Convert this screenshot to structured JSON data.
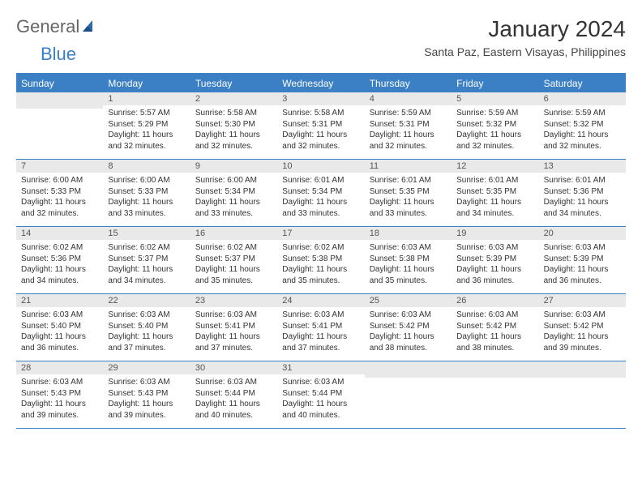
{
  "logo": {
    "text1": "General",
    "text2": "Blue"
  },
  "title": "January 2024",
  "subtitle": "Santa Paz, Eastern Visayas, Philippines",
  "colors": {
    "accent": "#3b7fc4",
    "header_bg": "#3b7fc4",
    "header_text": "#ffffff",
    "daynum_bg": "#e9e9e9",
    "text": "#333333"
  },
  "day_names": [
    "Sunday",
    "Monday",
    "Tuesday",
    "Wednesday",
    "Thursday",
    "Friday",
    "Saturday"
  ],
  "weeks": [
    [
      {
        "n": "",
        "lines": []
      },
      {
        "n": "1",
        "lines": [
          "Sunrise: 5:57 AM",
          "Sunset: 5:29 PM",
          "Daylight: 11 hours and 32 minutes."
        ]
      },
      {
        "n": "2",
        "lines": [
          "Sunrise: 5:58 AM",
          "Sunset: 5:30 PM",
          "Daylight: 11 hours and 32 minutes."
        ]
      },
      {
        "n": "3",
        "lines": [
          "Sunrise: 5:58 AM",
          "Sunset: 5:31 PM",
          "Daylight: 11 hours and 32 minutes."
        ]
      },
      {
        "n": "4",
        "lines": [
          "Sunrise: 5:59 AM",
          "Sunset: 5:31 PM",
          "Daylight: 11 hours and 32 minutes."
        ]
      },
      {
        "n": "5",
        "lines": [
          "Sunrise: 5:59 AM",
          "Sunset: 5:32 PM",
          "Daylight: 11 hours and 32 minutes."
        ]
      },
      {
        "n": "6",
        "lines": [
          "Sunrise: 5:59 AM",
          "Sunset: 5:32 PM",
          "Daylight: 11 hours and 32 minutes."
        ]
      }
    ],
    [
      {
        "n": "7",
        "lines": [
          "Sunrise: 6:00 AM",
          "Sunset: 5:33 PM",
          "Daylight: 11 hours and 32 minutes."
        ]
      },
      {
        "n": "8",
        "lines": [
          "Sunrise: 6:00 AM",
          "Sunset: 5:33 PM",
          "Daylight: 11 hours and 33 minutes."
        ]
      },
      {
        "n": "9",
        "lines": [
          "Sunrise: 6:00 AM",
          "Sunset: 5:34 PM",
          "Daylight: 11 hours and 33 minutes."
        ]
      },
      {
        "n": "10",
        "lines": [
          "Sunrise: 6:01 AM",
          "Sunset: 5:34 PM",
          "Daylight: 11 hours and 33 minutes."
        ]
      },
      {
        "n": "11",
        "lines": [
          "Sunrise: 6:01 AM",
          "Sunset: 5:35 PM",
          "Daylight: 11 hours and 33 minutes."
        ]
      },
      {
        "n": "12",
        "lines": [
          "Sunrise: 6:01 AM",
          "Sunset: 5:35 PM",
          "Daylight: 11 hours and 34 minutes."
        ]
      },
      {
        "n": "13",
        "lines": [
          "Sunrise: 6:01 AM",
          "Sunset: 5:36 PM",
          "Daylight: 11 hours and 34 minutes."
        ]
      }
    ],
    [
      {
        "n": "14",
        "lines": [
          "Sunrise: 6:02 AM",
          "Sunset: 5:36 PM",
          "Daylight: 11 hours and 34 minutes."
        ]
      },
      {
        "n": "15",
        "lines": [
          "Sunrise: 6:02 AM",
          "Sunset: 5:37 PM",
          "Daylight: 11 hours and 34 minutes."
        ]
      },
      {
        "n": "16",
        "lines": [
          "Sunrise: 6:02 AM",
          "Sunset: 5:37 PM",
          "Daylight: 11 hours and 35 minutes."
        ]
      },
      {
        "n": "17",
        "lines": [
          "Sunrise: 6:02 AM",
          "Sunset: 5:38 PM",
          "Daylight: 11 hours and 35 minutes."
        ]
      },
      {
        "n": "18",
        "lines": [
          "Sunrise: 6:03 AM",
          "Sunset: 5:38 PM",
          "Daylight: 11 hours and 35 minutes."
        ]
      },
      {
        "n": "19",
        "lines": [
          "Sunrise: 6:03 AM",
          "Sunset: 5:39 PM",
          "Daylight: 11 hours and 36 minutes."
        ]
      },
      {
        "n": "20",
        "lines": [
          "Sunrise: 6:03 AM",
          "Sunset: 5:39 PM",
          "Daylight: 11 hours and 36 minutes."
        ]
      }
    ],
    [
      {
        "n": "21",
        "lines": [
          "Sunrise: 6:03 AM",
          "Sunset: 5:40 PM",
          "Daylight: 11 hours and 36 minutes."
        ]
      },
      {
        "n": "22",
        "lines": [
          "Sunrise: 6:03 AM",
          "Sunset: 5:40 PM",
          "Daylight: 11 hours and 37 minutes."
        ]
      },
      {
        "n": "23",
        "lines": [
          "Sunrise: 6:03 AM",
          "Sunset: 5:41 PM",
          "Daylight: 11 hours and 37 minutes."
        ]
      },
      {
        "n": "24",
        "lines": [
          "Sunrise: 6:03 AM",
          "Sunset: 5:41 PM",
          "Daylight: 11 hours and 37 minutes."
        ]
      },
      {
        "n": "25",
        "lines": [
          "Sunrise: 6:03 AM",
          "Sunset: 5:42 PM",
          "Daylight: 11 hours and 38 minutes."
        ]
      },
      {
        "n": "26",
        "lines": [
          "Sunrise: 6:03 AM",
          "Sunset: 5:42 PM",
          "Daylight: 11 hours and 38 minutes."
        ]
      },
      {
        "n": "27",
        "lines": [
          "Sunrise: 6:03 AM",
          "Sunset: 5:42 PM",
          "Daylight: 11 hours and 39 minutes."
        ]
      }
    ],
    [
      {
        "n": "28",
        "lines": [
          "Sunrise: 6:03 AM",
          "Sunset: 5:43 PM",
          "Daylight: 11 hours and 39 minutes."
        ]
      },
      {
        "n": "29",
        "lines": [
          "Sunrise: 6:03 AM",
          "Sunset: 5:43 PM",
          "Daylight: 11 hours and 39 minutes."
        ]
      },
      {
        "n": "30",
        "lines": [
          "Sunrise: 6:03 AM",
          "Sunset: 5:44 PM",
          "Daylight: 11 hours and 40 minutes."
        ]
      },
      {
        "n": "31",
        "lines": [
          "Sunrise: 6:03 AM",
          "Sunset: 5:44 PM",
          "Daylight: 11 hours and 40 minutes."
        ]
      },
      {
        "n": "",
        "lines": []
      },
      {
        "n": "",
        "lines": []
      },
      {
        "n": "",
        "lines": []
      }
    ]
  ]
}
